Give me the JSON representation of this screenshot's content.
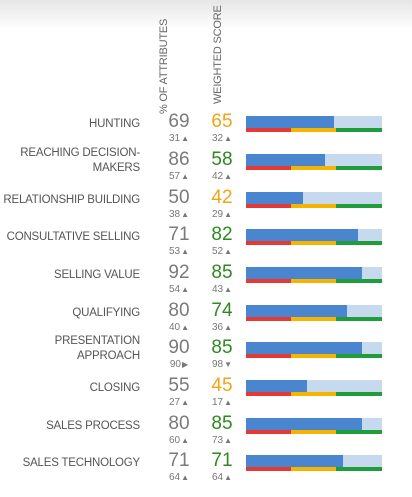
{
  "headers": {
    "percent_attributes": "% OF ATTRIBUTES",
    "weighted_score": "WEIGHTED SCORE"
  },
  "colors": {
    "score_green": "#2e8a1f",
    "score_orange": "#f2a413",
    "bar_fill": "#4a86d0",
    "bar_track": "#c6d9ef",
    "band_red": "#e53935",
    "band_yellow": "#f4b400",
    "band_green": "#1f9d3a"
  },
  "rows": [
    {
      "label": "HUNTING",
      "label2": "",
      "pct": "69",
      "pct_change": "31",
      "pct_trend": "up",
      "score": "65",
      "score_change": "32",
      "score_trend": "up",
      "score_color": "orange",
      "bar_level": 0.65
    },
    {
      "label": "REACHING DECISION-",
      "label2": "MAKERS",
      "pct": "86",
      "pct_change": "57",
      "pct_trend": "up",
      "score": "58",
      "score_change": "42",
      "score_trend": "up",
      "score_color": "green",
      "bar_level": 0.58
    },
    {
      "label": "RELATIONSHIP BUILDING",
      "label2": "",
      "pct": "50",
      "pct_change": "38",
      "pct_trend": "up",
      "score": "42",
      "score_change": "29",
      "score_trend": "up",
      "score_color": "orange",
      "bar_level": 0.42
    },
    {
      "label": "CONSULTATIVE SELLING",
      "label2": "",
      "pct": "71",
      "pct_change": "53",
      "pct_trend": "up",
      "score": "82",
      "score_change": "52",
      "score_trend": "up",
      "score_color": "green",
      "bar_level": 0.82
    },
    {
      "label": "SELLING VALUE",
      "label2": "",
      "pct": "92",
      "pct_change": "54",
      "pct_trend": "up",
      "score": "85",
      "score_change": "43",
      "score_trend": "up",
      "score_color": "green",
      "bar_level": 0.85
    },
    {
      "label": "QUALIFYING",
      "label2": "",
      "pct": "80",
      "pct_change": "40",
      "pct_trend": "up",
      "score": "74",
      "score_change": "36",
      "score_trend": "up",
      "score_color": "green",
      "bar_level": 0.74
    },
    {
      "label": "PRESENTATION",
      "label2": "APPROACH",
      "pct": "90",
      "pct_change": "90",
      "pct_trend": "right",
      "score": "85",
      "score_change": "98",
      "score_trend": "down",
      "score_color": "green",
      "bar_level": 0.85
    },
    {
      "label": "CLOSING",
      "label2": "",
      "pct": "55",
      "pct_change": "27",
      "pct_trend": "up",
      "score": "45",
      "score_change": "17",
      "score_trend": "up",
      "score_color": "orange",
      "bar_level": 0.45
    },
    {
      "label": "SALES PROCESS",
      "label2": "",
      "pct": "80",
      "pct_change": "60",
      "pct_trend": "up",
      "score": "85",
      "score_change": "73",
      "score_trend": "up",
      "score_color": "green",
      "bar_level": 0.85
    },
    {
      "label": "SALES TECHNOLOGY",
      "label2": "",
      "pct": "71",
      "pct_change": "64",
      "pct_trend": "up",
      "score": "71",
      "score_change": "64",
      "score_trend": "up",
      "score_color": "green",
      "bar_level": 0.71
    }
  ]
}
